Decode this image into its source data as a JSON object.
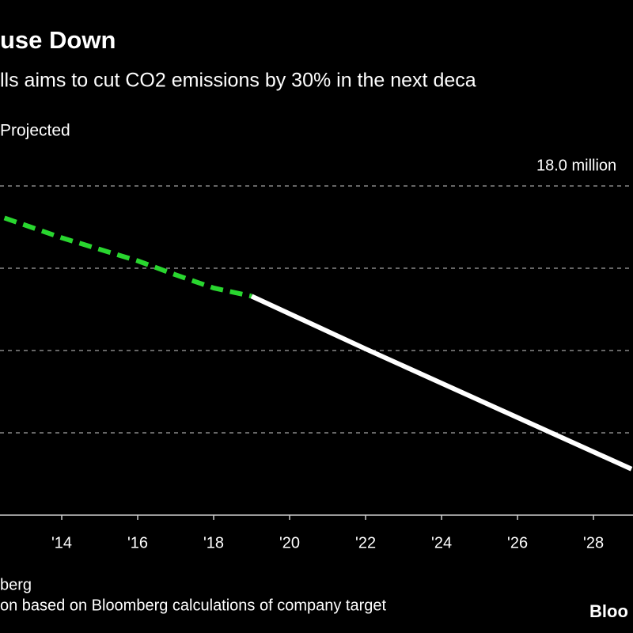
{
  "chart_data": {
    "type": "line",
    "title": "use Down",
    "subtitle": "lls aims to cut CO2 emissions by 30% in the next deca",
    "source": "berg",
    "note": "on based on Bloomberg calculations of company target",
    "brand": "Bloo",
    "series": [
      {
        "color": "#29d62f",
        "dashed": true,
        "x": [
          2012,
          2014,
          2016,
          2017,
          2018,
          2019
        ],
        "values": [
          17.69,
          17.37,
          17.09,
          16.92,
          16.76,
          16.66
        ]
      },
      {
        "name": "Projected",
        "color": "#ffffff",
        "dashed": false,
        "x": [
          2019,
          2022,
          2029
        ],
        "values": [
          16.66,
          16.02,
          14.56
        ]
      }
    ],
    "xlim": [
      2012.375,
      2029.04
    ],
    "xticks": [
      {
        "value": 2014,
        "label": "'14"
      },
      {
        "value": 2016,
        "label": "'16"
      },
      {
        "value": 2018,
        "label": "'18"
      },
      {
        "value": 2020,
        "label": "'20"
      },
      {
        "value": 2022,
        "label": "'22"
      },
      {
        "value": 2024,
        "label": "'24"
      },
      {
        "value": 2026,
        "label": "'26"
      },
      {
        "value": 2028,
        "label": "'28"
      }
    ],
    "ylim": [
      14,
      18
    ],
    "yticks": [
      15,
      16,
      17,
      {
        "value": 18,
        "label": "18.0 million"
      }
    ],
    "grid": true
  }
}
